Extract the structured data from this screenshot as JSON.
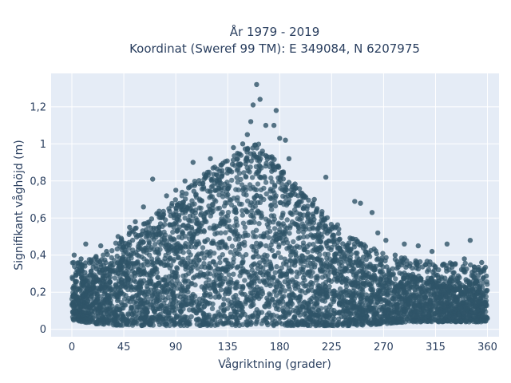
{
  "chart_data": {
    "type": "scatter",
    "title_line1": "År 1979 - 2019",
    "title_line2": "Koordinat (Sweref 99 TM): E 349084, N 6207975",
    "xlabel": "Vågriktning (grader)",
    "ylabel": "Signifikant våghöjd (m)",
    "xlim": [
      -18,
      370
    ],
    "ylim": [
      -0.04,
      1.38
    ],
    "x_ticks": [
      0,
      45,
      90,
      135,
      180,
      225,
      270,
      315,
      360
    ],
    "y_ticks": [
      {
        "value": 0,
        "label": "0"
      },
      {
        "value": 0.2,
        "label": "0,2"
      },
      {
        "value": 0.4,
        "label": "0,4"
      },
      {
        "value": 0.6,
        "label": "0,6"
      },
      {
        "value": 0.8,
        "label": "0,8"
      },
      {
        "value": 1,
        "label": "1"
      },
      {
        "value": 1.2,
        "label": "1,2"
      }
    ],
    "grid": true,
    "colors": {
      "background": "#e5ecf6",
      "grid": "#ffffff",
      "marker": "#2f5468"
    },
    "envelope": [
      {
        "x": 0,
        "ymin": 0.05,
        "ymax": 0.27
      },
      {
        "x": 20,
        "ymin": 0.03,
        "ymax": 0.3
      },
      {
        "x": 45,
        "ymin": 0.02,
        "ymax": 0.42
      },
      {
        "x": 70,
        "ymin": 0.02,
        "ymax": 0.52
      },
      {
        "x": 90,
        "ymin": 0.02,
        "ymax": 0.62
      },
      {
        "x": 110,
        "ymin": 0.02,
        "ymax": 0.74
      },
      {
        "x": 135,
        "ymin": 0.02,
        "ymax": 0.83
      },
      {
        "x": 160,
        "ymin": 0.02,
        "ymax": 0.92
      },
      {
        "x": 180,
        "ymin": 0.02,
        "ymax": 0.8
      },
      {
        "x": 200,
        "ymin": 0.02,
        "ymax": 0.65
      },
      {
        "x": 225,
        "ymin": 0.02,
        "ymax": 0.5
      },
      {
        "x": 250,
        "ymin": 0.02,
        "ymax": 0.38
      },
      {
        "x": 270,
        "ymin": 0.03,
        "ymax": 0.32
      },
      {
        "x": 300,
        "ymin": 0.04,
        "ymax": 0.28
      },
      {
        "x": 330,
        "ymin": 0.04,
        "ymax": 0.27
      },
      {
        "x": 360,
        "ymin": 0.04,
        "ymax": 0.26
      }
    ],
    "outliers": [
      {
        "x": 160,
        "y": 1.32
      },
      {
        "x": 163,
        "y": 1.24
      },
      {
        "x": 157,
        "y": 1.21
      },
      {
        "x": 177,
        "y": 1.18
      },
      {
        "x": 155,
        "y": 1.12
      },
      {
        "x": 168,
        "y": 1.1
      },
      {
        "x": 175,
        "y": 1.1
      },
      {
        "x": 180,
        "y": 1.03
      },
      {
        "x": 185,
        "y": 1.02
      },
      {
        "x": 152,
        "y": 1.05
      },
      {
        "x": 148,
        "y": 1.0
      },
      {
        "x": 140,
        "y": 0.98
      },
      {
        "x": 188,
        "y": 0.92
      },
      {
        "x": 120,
        "y": 0.92
      },
      {
        "x": 105,
        "y": 0.9
      },
      {
        "x": 220,
        "y": 0.82
      },
      {
        "x": 70,
        "y": 0.81
      },
      {
        "x": 98,
        "y": 0.8
      },
      {
        "x": 200,
        "y": 0.72
      },
      {
        "x": 210,
        "y": 0.7
      },
      {
        "x": 90,
        "y": 0.75
      },
      {
        "x": 82,
        "y": 0.72
      },
      {
        "x": 245,
        "y": 0.69
      },
      {
        "x": 250,
        "y": 0.68
      },
      {
        "x": 62,
        "y": 0.66
      },
      {
        "x": 260,
        "y": 0.63
      },
      {
        "x": 55,
        "y": 0.58
      },
      {
        "x": 50,
        "y": 0.55
      },
      {
        "x": 265,
        "y": 0.52
      },
      {
        "x": 40,
        "y": 0.5
      },
      {
        "x": 272,
        "y": 0.48
      },
      {
        "x": 288,
        "y": 0.46
      },
      {
        "x": 300,
        "y": 0.45
      },
      {
        "x": 325,
        "y": 0.46
      },
      {
        "x": 345,
        "y": 0.48
      },
      {
        "x": 12,
        "y": 0.46
      },
      {
        "x": 2,
        "y": 0.4
      },
      {
        "x": 25,
        "y": 0.45
      },
      {
        "x": 312,
        "y": 0.42
      },
      {
        "x": 340,
        "y": 0.38
      },
      {
        "x": 355,
        "y": 0.36
      },
      {
        "x": 280,
        "y": 0.4
      },
      {
        "x": 8,
        "y": 0.38
      },
      {
        "x": 30,
        "y": 0.42
      },
      {
        "x": 332,
        "y": 0.35
      }
    ]
  }
}
